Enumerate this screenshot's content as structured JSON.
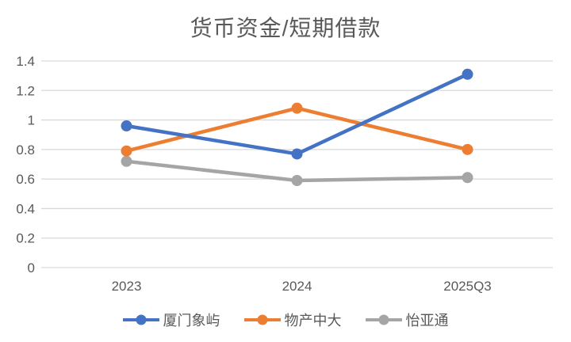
{
  "chart_data": {
    "type": "line",
    "title": "货币资金/短期借款",
    "categories": [
      "2023",
      "2024",
      "2025Q3"
    ],
    "series": [
      {
        "name": "厦门象屿",
        "color": "#4472C4",
        "values": [
          0.96,
          0.77,
          1.31
        ]
      },
      {
        "name": "物产中大",
        "color": "#ED7D31",
        "values": [
          0.79,
          1.08,
          0.8
        ]
      },
      {
        "name": "怡亚通",
        "color": "#A5A5A5",
        "values": [
          0.72,
          0.59,
          0.61
        ]
      }
    ],
    "ylim": [
      0,
      1.4
    ],
    "ytick_step": 0.2,
    "ytick_labels": [
      "0",
      "0.2",
      "0.4",
      "0.6",
      "0.8",
      "1",
      "1.2",
      "1.4"
    ],
    "xlabel": "",
    "ylabel": "",
    "grid": true,
    "legend_position": "bottom",
    "colors": {
      "background": "#FFFFFF",
      "grid": "#D9D9D9",
      "axis_text": "#595959",
      "title_text": "#595959"
    }
  }
}
